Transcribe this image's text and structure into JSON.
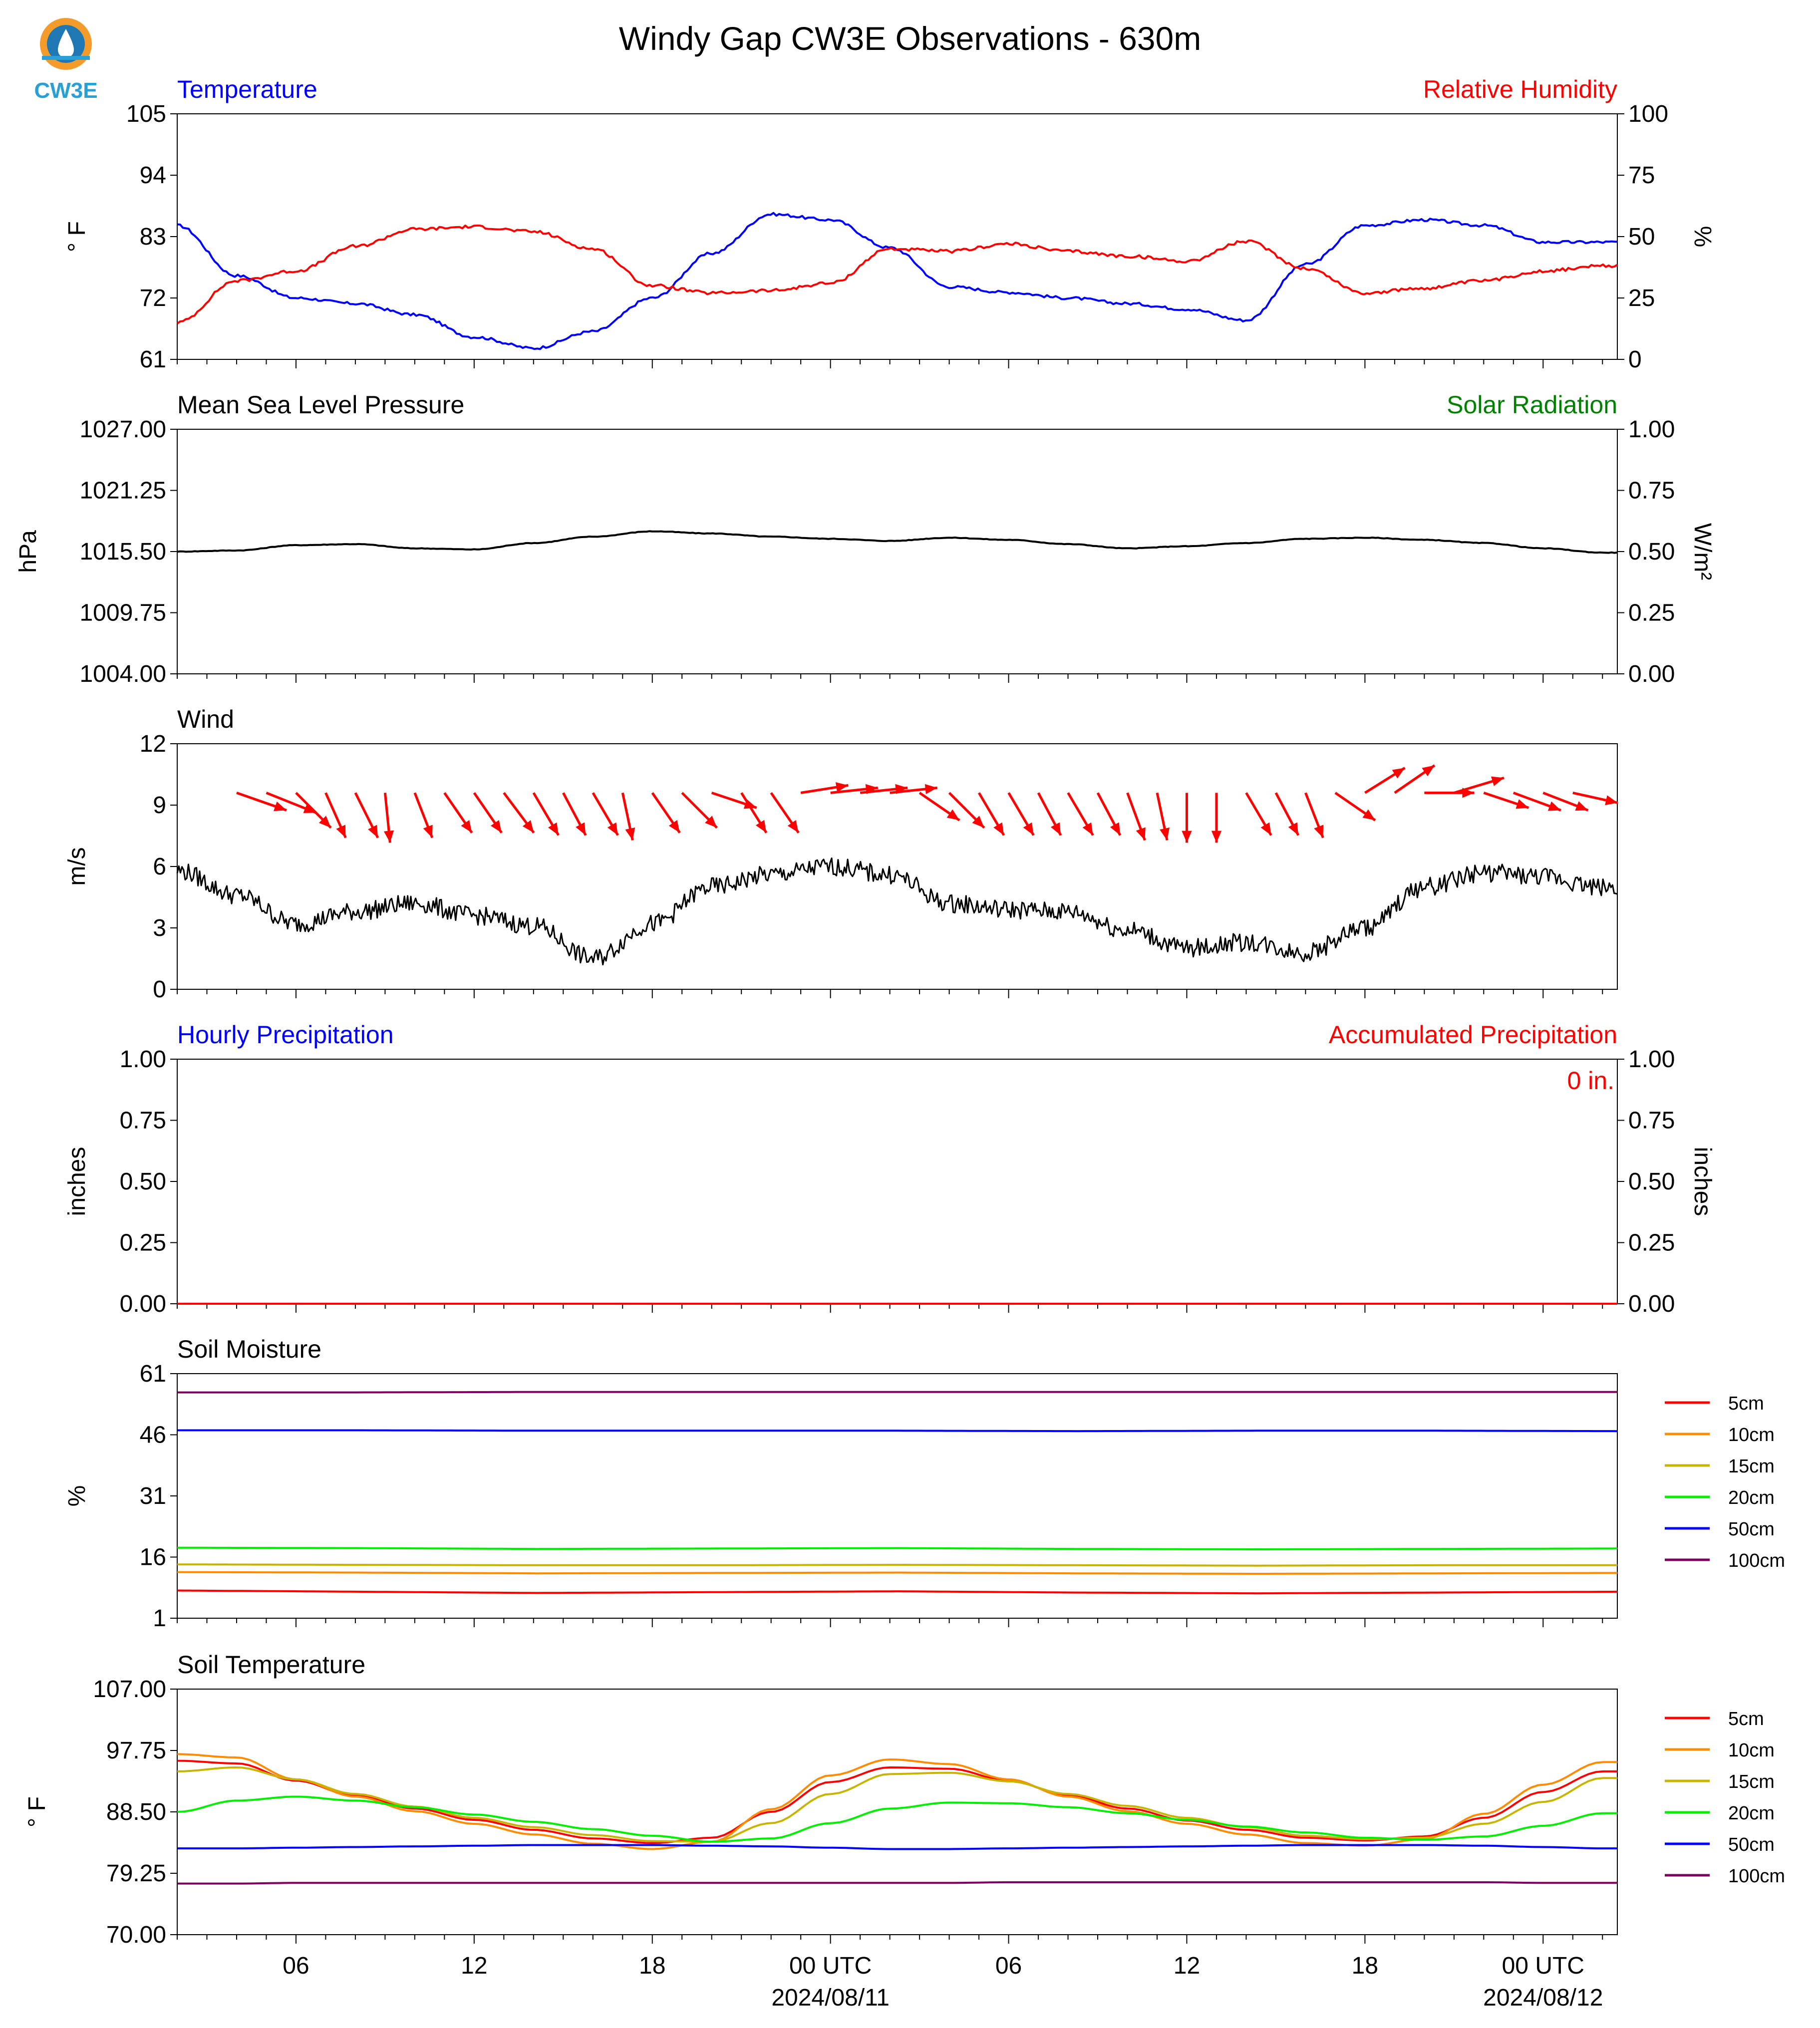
{
  "title": "Windy Gap CW3E Observations - 630m",
  "logo": {
    "text": "CW3E",
    "colors": {
      "orange": "#f39c2b",
      "blue": "#1f77b4",
      "teal": "#2a9fd6"
    }
  },
  "colors": {
    "blue": "#0000ff",
    "red": "#ff0000",
    "green": "#008000",
    "black": "#000000"
  },
  "x_axis": {
    "start": "2024-08-10 02:00 UTC",
    "end": "2024-08-12 02:30 UTC",
    "tick_labels": [
      {
        "time": "2024-08-10 06:00",
        "line1": "06",
        "line2": ""
      },
      {
        "time": "2024-08-10 12:00",
        "line1": "12",
        "line2": ""
      },
      {
        "time": "2024-08-10 18:00",
        "line1": "18",
        "line2": ""
      },
      {
        "time": "2024-08-11 00:00",
        "line1": "00 UTC",
        "line2": "2024/08/11"
      },
      {
        "time": "2024-08-11 06:00",
        "line1": "06",
        "line2": ""
      },
      {
        "time": "2024-08-11 12:00",
        "line1": "12",
        "line2": ""
      },
      {
        "time": "2024-08-11 18:00",
        "line1": "18",
        "line2": ""
      },
      {
        "time": "2024-08-12 00:00",
        "line1": "00 UTC",
        "line2": "2024/08/12"
      }
    ],
    "minor_ticks_every_hours": 1
  },
  "chart_data": [
    {
      "type": "line",
      "title_left": "Temperature",
      "title_right": "Relative Humidity",
      "ylabel_left": "° F",
      "ylabel_right": "%",
      "ylim": [
        61,
        105
      ],
      "yticks": [
        "61",
        "72",
        "83",
        "94",
        "105"
      ],
      "ylim_right": [
        0,
        100
      ],
      "yticks_right": [
        "0",
        "25",
        "50",
        "75",
        "100"
      ],
      "x": [
        "02:00",
        "04:00",
        "06:00",
        "08:00",
        "10:00",
        "12:00",
        "14:00",
        "16:00",
        "18:00",
        "20:00",
        "22:00",
        "00:00",
        "02:00",
        "04:00",
        "06:00",
        "08:00",
        "10:00",
        "12:00",
        "14:00",
        "16:00",
        "18:00",
        "20:00",
        "22:00",
        "00:00",
        "02:00"
      ],
      "series": [
        {
          "name": "Temperature",
          "axis": "left",
          "color": "#0000ff",
          "values": [
            85,
            76,
            72,
            71,
            69,
            65,
            63,
            66,
            72,
            80,
            87,
            86,
            81,
            74,
            73,
            72,
            71,
            70,
            68,
            78,
            85,
            86,
            85,
            82,
            82
          ]
        },
        {
          "name": "Relative Humidity",
          "axis": "right",
          "color": "#ff0000",
          "values": [
            15,
            32,
            36,
            46,
            53,
            54,
            52,
            45,
            30,
            27,
            28,
            31,
            45,
            44,
            47,
            44,
            42,
            40,
            48,
            37,
            27,
            29,
            32,
            36,
            38
          ]
        }
      ]
    },
    {
      "type": "line",
      "title_left": "Mean Sea Level Pressure",
      "title_right": "Solar Radiation",
      "ylabel_left": "hPa",
      "ylabel_right": "W/m²",
      "ylim": [
        1004,
        1027
      ],
      "yticks": [
        "1004.00",
        "1009.75",
        "1015.50",
        "1021.25",
        "1027.00"
      ],
      "ylim_right": [
        0,
        1
      ],
      "yticks_right": [
        "0.00",
        "0.25",
        "0.50",
        "0.75",
        "1.00"
      ],
      "x": [
        "02:00",
        "04:00",
        "06:00",
        "08:00",
        "10:00",
        "12:00",
        "14:00",
        "16:00",
        "18:00",
        "20:00",
        "22:00",
        "00:00",
        "02:00",
        "04:00",
        "06:00",
        "08:00",
        "10:00",
        "12:00",
        "14:00",
        "16:00",
        "18:00",
        "20:00",
        "22:00",
        "00:00",
        "02:00"
      ],
      "series": [
        {
          "name": "Mean Sea Level Pressure",
          "axis": "left",
          "color": "#000000",
          "values": [
            1015.5,
            1015.6,
            1016.1,
            1016.2,
            1015.8,
            1015.7,
            1016.3,
            1016.9,
            1017.4,
            1017.2,
            1016.9,
            1016.7,
            1016.5,
            1016.8,
            1016.6,
            1016.2,
            1015.8,
            1016.0,
            1016.3,
            1016.7,
            1016.8,
            1016.6,
            1016.3,
            1015.8,
            1015.4
          ]
        }
      ]
    },
    {
      "type": "line",
      "title_left": "Wind",
      "ylabel_left": "m/s",
      "ylim": [
        0,
        12
      ],
      "yticks": [
        "0",
        "3",
        "6",
        "9",
        "12"
      ],
      "x": [
        "02:00",
        "04:00",
        "06:00",
        "08:00",
        "10:00",
        "12:00",
        "14:00",
        "16:00",
        "18:00",
        "20:00",
        "22:00",
        "00:00",
        "02:00",
        "04:00",
        "06:00",
        "08:00",
        "10:00",
        "12:00",
        "14:00",
        "16:00",
        "18:00",
        "20:00",
        "22:00",
        "00:00",
        "02:00"
      ],
      "series": [
        {
          "name": "Wind speed",
          "axis": "left",
          "color": "#000000",
          "values": [
            5.8,
            4.6,
            3.2,
            3.8,
            4.2,
            3.6,
            3.1,
            1.5,
            3.2,
            5.0,
            5.6,
            6.0,
            5.6,
            4.2,
            3.9,
            3.8,
            2.9,
            2.0,
            2.3,
            1.8,
            3.0,
            5.0,
            5.7,
            5.5,
            5.0
          ]
        }
      ],
      "wind_barbs": {
        "color": "#ff0000",
        "y_level": 9.6,
        "arrows": [
          {
            "hour": 2.0,
            "dx": 1.0,
            "dy": -0.35
          },
          {
            "hour": 3.0,
            "dx": 1.0,
            "dy": -0.4
          },
          {
            "hour": 4.0,
            "dx": 0.7,
            "dy": -0.7
          },
          {
            "hour": 5.0,
            "dx": 0.4,
            "dy": -0.9
          },
          {
            "hour": 6.0,
            "dx": 0.45,
            "dy": -0.9
          },
          {
            "hour": 7.0,
            "dx": 0.1,
            "dy": -1.0
          },
          {
            "hour": 8.0,
            "dx": 0.35,
            "dy": -0.9
          },
          {
            "hour": 9.0,
            "dx": 0.55,
            "dy": -0.8
          },
          {
            "hour": 10.0,
            "dx": 0.55,
            "dy": -0.8
          },
          {
            "hour": 11.0,
            "dx": 0.6,
            "dy": -0.8
          },
          {
            "hour": 12.0,
            "dx": 0.5,
            "dy": -0.85
          },
          {
            "hour": 13.0,
            "dx": 0.45,
            "dy": -0.85
          },
          {
            "hour": 14.0,
            "dx": 0.5,
            "dy": -0.85
          },
          {
            "hour": 15.0,
            "dx": 0.2,
            "dy": -0.95
          },
          {
            "hour": 16.0,
            "dx": 0.55,
            "dy": -0.8
          },
          {
            "hour": 17.0,
            "dx": 0.7,
            "dy": -0.7
          },
          {
            "hour": 18.0,
            "dx": 0.9,
            "dy": -0.3
          },
          {
            "hour": 19.0,
            "dx": 0.5,
            "dy": -0.8
          },
          {
            "hour": 20.0,
            "dx": 0.55,
            "dy": -0.8
          },
          {
            "hour": 21.0,
            "dx": 0.95,
            "dy": 0.15
          },
          {
            "hour": 22.0,
            "dx": 0.95,
            "dy": 0.1
          },
          {
            "hour": 23.0,
            "dx": 0.95,
            "dy": 0.1
          },
          {
            "hour": 24.0,
            "dx": 0.95,
            "dy": 0.1
          },
          {
            "hour": 25.0,
            "dx": 0.8,
            "dy": -0.55
          },
          {
            "hour": 26.0,
            "dx": 0.7,
            "dy": -0.7
          },
          {
            "hour": 27.0,
            "dx": 0.5,
            "dy": -0.85
          },
          {
            "hour": 28.0,
            "dx": 0.5,
            "dy": -0.85
          },
          {
            "hour": 29.0,
            "dx": 0.45,
            "dy": -0.85
          },
          {
            "hour": 30.0,
            "dx": 0.5,
            "dy": -0.85
          },
          {
            "hour": 31.0,
            "dx": 0.45,
            "dy": -0.85
          },
          {
            "hour": 32.0,
            "dx": 0.35,
            "dy": -0.95
          },
          {
            "hour": 33.0,
            "dx": 0.2,
            "dy": -0.95
          },
          {
            "hour": 34.0,
            "dx": 0.0,
            "dy": -1.0
          },
          {
            "hour": 35.0,
            "dx": 0.0,
            "dy": -1.0
          },
          {
            "hour": 36.0,
            "dx": 0.5,
            "dy": -0.85
          },
          {
            "hour": 37.0,
            "dx": 0.45,
            "dy": -0.85
          },
          {
            "hour": 38.0,
            "dx": 0.35,
            "dy": -0.9
          },
          {
            "hour": 39.0,
            "dx": 0.8,
            "dy": -0.55
          },
          {
            "hour": 40.0,
            "dx": 0.8,
            "dy": 0.5
          },
          {
            "hour": 41.0,
            "dx": 0.8,
            "dy": 0.55
          },
          {
            "hour": 42.0,
            "dx": 1.0,
            "dy": 0.0
          },
          {
            "hour": 43.0,
            "dx": 1.0,
            "dy": 0.3
          },
          {
            "hour": 44.0,
            "dx": 0.9,
            "dy": -0.3
          },
          {
            "hour": 45.0,
            "dx": 0.95,
            "dy": -0.35
          },
          {
            "hour": 46.0,
            "dx": 0.9,
            "dy": -0.35
          },
          {
            "hour": 47.0,
            "dx": 0.9,
            "dy": -0.2
          }
        ]
      }
    },
    {
      "type": "line",
      "title_left": "Hourly Precipitation",
      "title_right": "Accumulated Precipitation",
      "annotation": "0 in.",
      "ylabel_left": "inches",
      "ylabel_right": "inches",
      "ylim": [
        0,
        1
      ],
      "yticks": [
        "0.00",
        "0.25",
        "0.50",
        "0.75",
        "1.00"
      ],
      "ylim_right": [
        0,
        1
      ],
      "yticks_right": [
        "0.00",
        "0.25",
        "0.50",
        "0.75",
        "1.00"
      ],
      "series": [
        {
          "name": "Accumulated Precipitation",
          "axis": "right",
          "color": "#ff0000",
          "values": [
            0,
            0
          ]
        }
      ]
    },
    {
      "type": "line",
      "title_left": "Soil Moisture",
      "ylabel_left": "%",
      "ylim": [
        1,
        61
      ],
      "yticks": [
        "1",
        "16",
        "31",
        "46",
        "61"
      ],
      "legend": "right",
      "series": [
        {
          "name": "5cm",
          "color": "#ff0000",
          "values": [
            7.8,
            7.5,
            7.2,
            7.4,
            7.6,
            7.3,
            7.1,
            7.3,
            7.5
          ]
        },
        {
          "name": "10cm",
          "color": "#ff8c00",
          "values": [
            12.3,
            12.2,
            12.0,
            12.1,
            12.2,
            12.0,
            11.9,
            12.0,
            12.1
          ]
        },
        {
          "name": "15cm",
          "color": "#c8b400",
          "values": [
            14.2,
            14.1,
            14.0,
            14.0,
            14.1,
            14.0,
            13.9,
            14.0,
            14.0
          ]
        },
        {
          "name": "20cm",
          "color": "#00ee00",
          "values": [
            18.3,
            18.2,
            18.0,
            18.1,
            18.2,
            18.0,
            17.9,
            18.0,
            18.1
          ]
        },
        {
          "name": "50cm",
          "color": "#0000ff",
          "values": [
            47.1,
            47.1,
            47.0,
            47.0,
            47.0,
            46.9,
            47.0,
            47.0,
            46.9
          ]
        },
        {
          "name": "100cm",
          "color": "#800060",
          "values": [
            56.4,
            56.4,
            56.5,
            56.5,
            56.5,
            56.5,
            56.5,
            56.5,
            56.5
          ]
        }
      ]
    },
    {
      "type": "line",
      "title_left": "Soil Temperature",
      "ylabel_left": "° F",
      "ylim": [
        70,
        107
      ],
      "yticks": [
        "70.00",
        "79.25",
        "88.50",
        "97.75",
        "107.00"
      ],
      "legend": "right",
      "x": [
        "02:00",
        "04:00",
        "06:00",
        "08:00",
        "10:00",
        "12:00",
        "14:00",
        "16:00",
        "18:00",
        "20:00",
        "22:00",
        "00:00",
        "02:00",
        "04:00",
        "06:00",
        "08:00",
        "10:00",
        "12:00",
        "14:00",
        "16:00",
        "18:00",
        "20:00",
        "22:00",
        "00:00",
        "02:00"
      ],
      "series": [
        {
          "name": "5cm",
          "color": "#ff0000",
          "values": [
            96.2,
            95.8,
            93.2,
            90.9,
            89.0,
            87.3,
            85.8,
            84.5,
            83.8,
            84.6,
            88.5,
            93.0,
            95.2,
            95.0,
            93.2,
            91.0,
            89.0,
            87.2,
            85.8,
            84.6,
            84.2,
            84.8,
            87.6,
            91.5,
            94.6
          ]
        },
        {
          "name": "10cm",
          "color": "#ff8c00",
          "values": [
            97.2,
            96.7,
            93.4,
            90.8,
            88.6,
            86.7,
            85.1,
            83.7,
            82.9,
            84.0,
            88.9,
            94.0,
            96.4,
            95.7,
            93.4,
            90.8,
            88.6,
            86.7,
            85.1,
            83.8,
            83.4,
            84.4,
            88.2,
            92.6,
            96.0
          ]
        },
        {
          "name": "15cm",
          "color": "#c8b400",
          "values": [
            94.6,
            95.2,
            93.4,
            91.2,
            89.3,
            87.6,
            86.2,
            85.0,
            84.1,
            84.0,
            86.8,
            91.2,
            94.2,
            94.4,
            93.1,
            91.2,
            89.4,
            87.6,
            86.2,
            84.9,
            84.4,
            84.6,
            86.7,
            90.0,
            93.6
          ]
        },
        {
          "name": "20cm",
          "color": "#00ee00",
          "values": [
            88.5,
            90.2,
            90.8,
            90.2,
            89.2,
            88.1,
            87.0,
            85.9,
            84.9,
            84.0,
            84.5,
            86.8,
            89.0,
            89.9,
            89.8,
            89.2,
            88.3,
            87.3,
            86.3,
            85.4,
            84.6,
            84.3,
            84.8,
            86.4,
            88.3
          ]
        },
        {
          "name": "50cm",
          "color": "#0000ff",
          "values": [
            83.0,
            83.0,
            83.1,
            83.2,
            83.3,
            83.4,
            83.5,
            83.5,
            83.5,
            83.4,
            83.3,
            83.1,
            82.9,
            82.9,
            83.0,
            83.1,
            83.2,
            83.3,
            83.4,
            83.5,
            83.5,
            83.5,
            83.4,
            83.2,
            83.0
          ]
        },
        {
          "name": "100cm",
          "color": "#800060",
          "values": [
            77.7,
            77.7,
            77.8,
            77.8,
            77.8,
            77.8,
            77.8,
            77.8,
            77.8,
            77.8,
            77.8,
            77.8,
            77.8,
            77.8,
            77.9,
            77.9,
            77.9,
            77.9,
            77.9,
            77.9,
            77.9,
            77.9,
            77.9,
            77.8,
            77.8
          ]
        }
      ]
    }
  ]
}
